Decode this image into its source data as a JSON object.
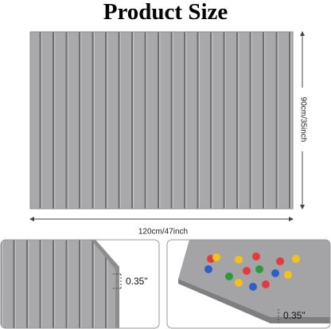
{
  "header": {
    "title": "Product Size"
  },
  "dimensions": {
    "width": "120cm/47inch",
    "height": "90cm/35inch"
  },
  "details": [
    {
      "thickness": "0.35\""
    },
    {
      "thickness": "0.35\""
    }
  ]
}
